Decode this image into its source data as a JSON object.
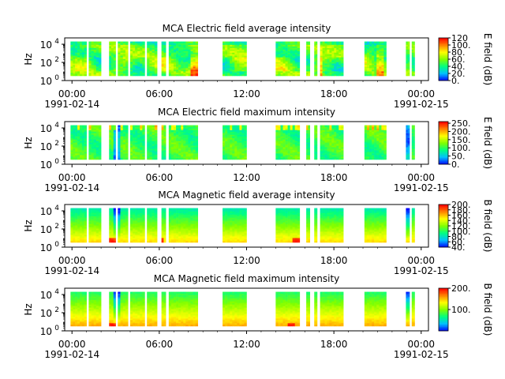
{
  "chart_data": [
    {
      "type": "heatmap",
      "title": "MCA  Electric field average intensity",
      "ylabel": "Hz",
      "yscale": "log",
      "ylim": [
        1,
        50000
      ],
      "y_ticks": [
        {
          "value": 1,
          "base": "10",
          "exp": "0"
        },
        {
          "value": 100,
          "base": "10",
          "exp": "2"
        },
        {
          "value": 10000,
          "base": "10",
          "exp": "4"
        }
      ],
      "x_ticks": [
        {
          "line1": "00:00",
          "line2": "1991-02-14"
        },
        {
          "line1": "06:00",
          "line2": ""
        },
        {
          "line1": "12:00",
          "line2": ""
        },
        {
          "line1": "18:00",
          "line2": ""
        },
        {
          "line1": "00:00",
          "line2": "1991-02-15"
        }
      ],
      "colorbar": {
        "label": "E field (dB)",
        "range": [
          0,
          120
        ],
        "ticks": [
          "0.",
          "20.",
          "40.",
          "60.",
          "80.",
          "100.",
          "120"
        ]
      },
      "palette": "average"
    },
    {
      "type": "heatmap",
      "title": "MCA  Electric field maximum intensity",
      "ylabel": "Hz",
      "yscale": "log",
      "ylim": [
        1,
        50000
      ],
      "y_ticks": [
        {
          "value": 1,
          "base": "10",
          "exp": "0"
        },
        {
          "value": 100,
          "base": "10",
          "exp": "2"
        },
        {
          "value": 10000,
          "base": "10",
          "exp": "4"
        }
      ],
      "x_ticks": [
        {
          "line1": "00:00",
          "line2": "1991-02-14"
        },
        {
          "line1": "06:00",
          "line2": ""
        },
        {
          "line1": "12:00",
          "line2": ""
        },
        {
          "line1": "18:00",
          "line2": ""
        },
        {
          "line1": "00:00",
          "line2": "1991-02-15"
        }
      ],
      "colorbar": {
        "label": "E field (dB)",
        "range": [
          0,
          260
        ],
        "ticks": [
          "0.",
          "50.",
          "100.",
          "150.",
          "200.",
          "250."
        ]
      },
      "palette": "emax"
    },
    {
      "type": "heatmap",
      "title": "MCA  Magnetic field average intensity",
      "ylabel": "Hz",
      "yscale": "log",
      "ylim": [
        1,
        50000
      ],
      "y_ticks": [
        {
          "value": 1,
          "base": "10",
          "exp": "0"
        },
        {
          "value": 100,
          "base": "10",
          "exp": "2"
        },
        {
          "value": 10000,
          "base": "10",
          "exp": "4"
        }
      ],
      "x_ticks": [
        {
          "line1": "00:00",
          "line2": "1991-02-14"
        },
        {
          "line1": "06:00",
          "line2": ""
        },
        {
          "line1": "12:00",
          "line2": ""
        },
        {
          "line1": "18:00",
          "line2": ""
        },
        {
          "line1": "00:00",
          "line2": "1991-02-15"
        }
      ],
      "colorbar": {
        "label": "B field (dB)",
        "range": [
          40,
          200
        ],
        "ticks": [
          "40.",
          "60.",
          "80.",
          "100.",
          "120.",
          "140.",
          "160.",
          "180.",
          "200."
        ]
      },
      "palette": "bavg"
    },
    {
      "type": "heatmap",
      "title": "MCA  Magnetic field maximum intensity",
      "ylabel": "Hz",
      "yscale": "log",
      "ylim": [
        1,
        50000
      ],
      "y_ticks": [
        {
          "value": 1,
          "base": "10",
          "exp": "0"
        },
        {
          "value": 100,
          "base": "10",
          "exp": "2"
        },
        {
          "value": 10000,
          "base": "10",
          "exp": "4"
        }
      ],
      "x_ticks": [
        {
          "line1": "00:00",
          "line2": "1991-02-14"
        },
        {
          "line1": "06:00",
          "line2": ""
        },
        {
          "line1": "12:00",
          "line2": ""
        },
        {
          "line1": "18:00",
          "line2": ""
        },
        {
          "line1": "00:00",
          "line2": "1991-02-15"
        }
      ],
      "colorbar": {
        "label": "B field (dB)",
        "range": [
          0,
          200
        ],
        "ticks": [
          "100.",
          "200."
        ]
      },
      "palette": "bmax"
    }
  ],
  "data_segments_hours": [
    [
      -0.1,
      1.0
    ],
    [
      1.15,
      2.0
    ],
    [
      2.55,
      3.0
    ],
    [
      3.15,
      3.85
    ],
    [
      4.0,
      5.0
    ],
    [
      5.15,
      5.85
    ],
    [
      6.15,
      6.45
    ],
    [
      6.65,
      8.65
    ],
    [
      10.35,
      12.0
    ],
    [
      14.0,
      15.65
    ],
    [
      16.1,
      16.35
    ],
    [
      16.65,
      16.85
    ],
    [
      17.05,
      18.65
    ],
    [
      20.1,
      21.6
    ],
    [
      22.95,
      23.2
    ],
    [
      23.35,
      23.55
    ]
  ],
  "x_range_hours": [
    -0.5,
    24.5
  ],
  "colors": {
    "palette": [
      "#0000ff",
      "#00bfff",
      "#00ff80",
      "#80ff00",
      "#ffff00",
      "#ff8000",
      "#ff0000"
    ]
  }
}
